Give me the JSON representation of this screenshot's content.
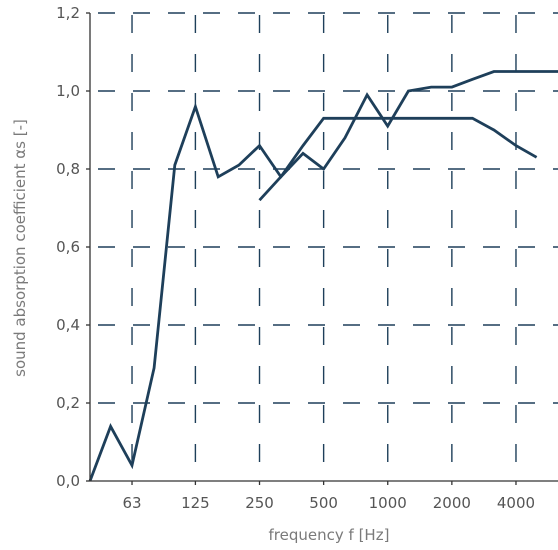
{
  "chart_data": {
    "type": "line",
    "title": "",
    "xlabel": "frequency f [Hz]",
    "ylabel": "sound absorption coefficient αs [-]",
    "x_scale": "log",
    "x_ticks": [
      63,
      125,
      250,
      500,
      1000,
      2000,
      4000
    ],
    "x_tick_labels": [
      "63",
      "125",
      "250",
      "500",
      "1000",
      "2000",
      "4000"
    ],
    "xlim": [
      40,
      6300
    ],
    "ylim": [
      0,
      1.2
    ],
    "y_ticks": [
      0,
      0.2,
      0.4,
      0.6,
      0.8,
      1.0,
      1.2
    ],
    "y_tick_labels": [
      "0,0",
      "0,2",
      "0,4",
      "0,6",
      "0,8",
      "1,0",
      "1,2"
    ],
    "grid": true,
    "grid_style": "dashed",
    "line_color": "#1e3f5a",
    "series": [
      {
        "x": [
          40,
          50,
          63,
          80,
          100,
          125,
          160,
          200,
          250,
          315,
          400,
          500,
          630,
          800,
          1000,
          1250,
          1600,
          2000,
          2500,
          3150,
          4000,
          5000,
          6300
        ],
        "values": [
          0.0,
          0.14,
          0.04,
          0.29,
          0.81,
          0.96,
          0.78,
          0.81,
          0.86,
          0.78,
          0.84,
          0.8,
          0.88,
          0.99,
          0.91,
          1.0,
          1.01,
          1.01,
          1.03,
          1.05,
          1.05,
          1.05,
          1.05
        ]
      },
      {
        "x": [
          250,
          315,
          400,
          500,
          630,
          800,
          1000,
          1250,
          1600,
          2000,
          2500,
          3150,
          4000,
          5000
        ],
        "values": [
          0.72,
          0.78,
          0.86,
          0.93,
          0.93,
          0.93,
          0.93,
          0.93,
          0.93,
          0.93,
          0.93,
          0.9,
          0.86,
          0.83
        ]
      }
    ]
  }
}
